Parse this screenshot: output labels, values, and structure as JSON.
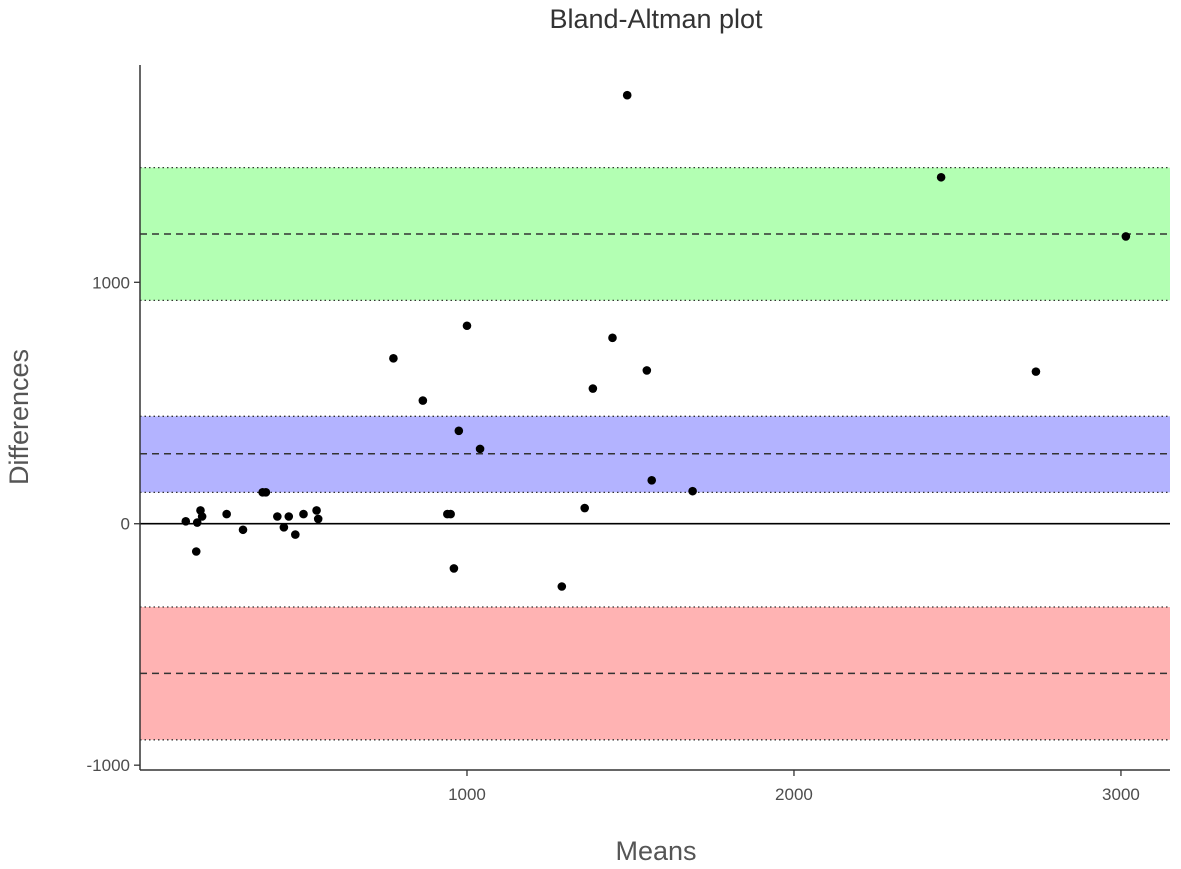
{
  "chart_data": {
    "type": "scatter",
    "title": "Bland-Altman plot",
    "xlabel": "Means",
    "ylabel": "Differences",
    "xlim": [
      0,
      3150
    ],
    "ylim": [
      -1020,
      1900
    ],
    "xticks": [
      1000,
      2000,
      3000
    ],
    "yticks": [
      -1000,
      0,
      1000
    ],
    "grid": false,
    "reference_lines": {
      "zero": 0,
      "bias": 290,
      "lower_loa": -620,
      "upper_loa": 1200
    },
    "bands": [
      {
        "name": "upper-loa-ci",
        "from": 925,
        "to": 1475,
        "color": "#b3ffb3",
        "center": 1200
      },
      {
        "name": "bias-ci",
        "from": 130,
        "to": 445,
        "color": "#b3b3ff",
        "center": 290
      },
      {
        "name": "lower-loa-ci",
        "from": -895,
        "to": -345,
        "color": "#ffb3b3",
        "center": -620
      }
    ],
    "points": [
      {
        "x": 140,
        "y": 10
      },
      {
        "x": 172,
        "y": -115
      },
      {
        "x": 175,
        "y": 5
      },
      {
        "x": 185,
        "y": 55
      },
      {
        "x": 190,
        "y": 30
      },
      {
        "x": 265,
        "y": 40
      },
      {
        "x": 315,
        "y": -25
      },
      {
        "x": 375,
        "y": 130
      },
      {
        "x": 385,
        "y": 130
      },
      {
        "x": 420,
        "y": 30
      },
      {
        "x": 440,
        "y": -15
      },
      {
        "x": 455,
        "y": 30
      },
      {
        "x": 475,
        "y": -45
      },
      {
        "x": 500,
        "y": 40
      },
      {
        "x": 540,
        "y": 55
      },
      {
        "x": 545,
        "y": 20
      },
      {
        "x": 775,
        "y": 685
      },
      {
        "x": 865,
        "y": 510
      },
      {
        "x": 940,
        "y": 40
      },
      {
        "x": 950,
        "y": 40
      },
      {
        "x": 960,
        "y": -185
      },
      {
        "x": 975,
        "y": 385
      },
      {
        "x": 1000,
        "y": 820
      },
      {
        "x": 1040,
        "y": 310
      },
      {
        "x": 1290,
        "y": -260
      },
      {
        "x": 1360,
        "y": 65
      },
      {
        "x": 1385,
        "y": 560
      },
      {
        "x": 1445,
        "y": 770
      },
      {
        "x": 1490,
        "y": 1775
      },
      {
        "x": 1550,
        "y": 635
      },
      {
        "x": 1565,
        "y": 180
      },
      {
        "x": 1690,
        "y": 135
      },
      {
        "x": 2450,
        "y": 1435
      },
      {
        "x": 2740,
        "y": 630
      },
      {
        "x": 3015,
        "y": 1190
      }
    ]
  }
}
